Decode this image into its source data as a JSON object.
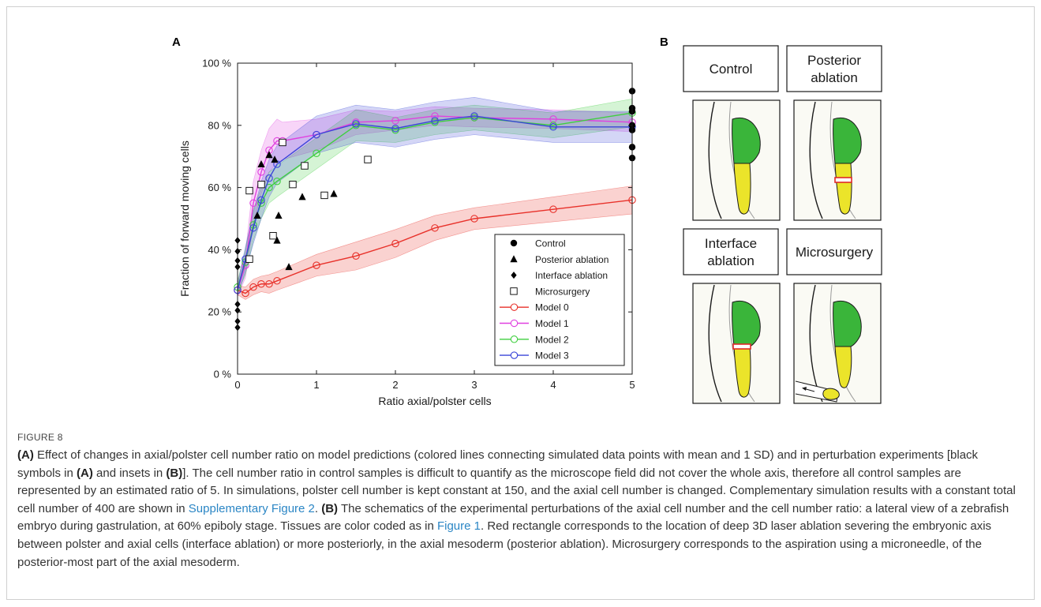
{
  "figure": {
    "panel_a_label": "A",
    "panel_b_label": "B",
    "caption_label": "FIGURE 8",
    "caption_a_ref": "(A)",
    "caption_1": " Effect of changes in axial/polster cell number ratio on model predictions (colored lines connecting simulated data points with mean and 1 SD) and in perturbation experiments [black symbols in ",
    "caption_2": " and insets in ",
    "caption_3": "]. The cell number ratio in control samples is difficult to quantify as the microscope field did not cover the whole axis, therefore all control samples are represented by an estimated ratio of 5. In simulations, polster cell number is kept constant at 150, and the axial cell number is changed. Complementary simulation results with a constant total cell number of 400 are shown in ",
    "caption_link_1": "Supplementary Figure 2",
    "caption_4": ". ",
    "caption_b_ref": "(B)",
    "caption_5": " The schematics of the experimental perturbations of the axial cell number and the cell number ratio: a lateral view of a zebrafish embryo during gastrulation, at 60% epiboly stage. Tissues are color coded as in ",
    "caption_link_2": "Figure 1",
    "caption_6": ". Red rectangle corresponds to the location of deep 3D laser ablation severing the embryonic axis between polster and axial cells (interface ablation) or more posteriorly, in the axial mesoderm (posterior ablation). Microsurgery corresponds to the aspiration using a microneedle, of the posterior-most part of the axial mesoderm.",
    "inset_titles": {
      "control": [
        "Control"
      ],
      "posterior": [
        "Posterior",
        "ablation"
      ],
      "interface": [
        "Interface",
        "ablation"
      ],
      "microsurgery": [
        "Microsurgery"
      ]
    }
  },
  "chart_data": {
    "type": "line",
    "xlabel": "Ratio axial/polster cells",
    "ylabel": "Fraction of forward moving cells",
    "xlim": [
      0,
      5
    ],
    "ylim": [
      0,
      100
    ],
    "xticks": [
      "0",
      "1",
      "2",
      "3",
      "4",
      "5"
    ],
    "yticks": [
      "0 %",
      "20 %",
      "40 %",
      "60 %",
      "80 %",
      "100 %"
    ],
    "grid": false,
    "legend_position": "bottom-right",
    "series": [
      {
        "name": "Model 0",
        "color": "#e8312a",
        "x": [
          0,
          0.1,
          0.2,
          0.3,
          0.4,
          0.5,
          1,
          1.5,
          2,
          2.5,
          3,
          4,
          5
        ],
        "y": [
          27,
          26,
          28,
          29,
          29,
          30,
          35,
          38,
          42,
          47,
          50,
          53,
          56
        ],
        "sd": [
          1.5,
          2,
          2.5,
          2.5,
          3,
          3,
          3.5,
          4.5,
          4.5,
          4,
          3.5,
          4,
          4.5
        ]
      },
      {
        "name": "Model 1",
        "color": "#e040e0",
        "x": [
          0,
          0.1,
          0.2,
          0.3,
          0.4,
          0.5,
          0.57,
          1,
          1.5,
          2,
          2.5,
          3,
          4,
          5
        ],
        "y": [
          27,
          35,
          55,
          65,
          72,
          75,
          75,
          77,
          81,
          81.5,
          83,
          82.5,
          82,
          81
        ],
        "sd": [
          2,
          4,
          7,
          7,
          7,
          7,
          6,
          5,
          4,
          3,
          3,
          3,
          3,
          3
        ]
      },
      {
        "name": "Model 2",
        "color": "#3fcf3f",
        "x": [
          0,
          0.1,
          0.2,
          0.3,
          0.4,
          0.5,
          1,
          1.5,
          2,
          2.5,
          3,
          4,
          5
        ],
        "y": [
          28,
          36,
          48,
          55,
          60,
          62,
          71,
          80,
          78.5,
          81,
          82.5,
          80,
          84
        ],
        "sd": [
          2,
          4,
          5,
          5,
          5,
          5,
          5,
          5,
          4,
          4,
          4,
          4,
          4.5
        ]
      },
      {
        "name": "Model 3",
        "color": "#3a46d8",
        "x": [
          0,
          0.1,
          0.2,
          0.3,
          0.4,
          0.5,
          1,
          1.5,
          2,
          2.5,
          3,
          4,
          5
        ],
        "y": [
          27,
          37,
          47,
          56,
          63,
          67.5,
          77,
          80.5,
          79,
          81.5,
          83,
          79.5,
          79.5
        ],
        "sd": [
          2,
          4,
          5,
          6,
          6,
          6,
          6,
          6,
          6,
          6,
          6,
          5,
          5
        ]
      }
    ],
    "experiments": [
      {
        "name": "Control",
        "marker": "circle",
        "points": [
          [
            5,
            91
          ],
          [
            5,
            85.5
          ],
          [
            5,
            84.5
          ],
          [
            5,
            80
          ],
          [
            5,
            78.5
          ],
          [
            5,
            73
          ],
          [
            5,
            69.5
          ]
        ]
      },
      {
        "name": "Posterior ablation",
        "marker": "triangle",
        "points": [
          [
            0.3,
            67.5
          ],
          [
            0.4,
            70.5
          ],
          [
            0.47,
            69
          ],
          [
            0.25,
            51
          ],
          [
            0.52,
            51
          ],
          [
            0.5,
            43
          ],
          [
            0.65,
            34.5
          ],
          [
            0.82,
            57
          ],
          [
            1.22,
            58
          ]
        ]
      },
      {
        "name": "Interface ablation",
        "marker": "diamond",
        "points": [
          [
            0,
            43
          ],
          [
            0,
            39.5
          ],
          [
            0,
            36.5
          ],
          [
            0,
            34.5
          ],
          [
            0,
            22.5
          ],
          [
            0,
            20.5
          ],
          [
            0,
            17
          ],
          [
            0,
            15
          ]
        ]
      },
      {
        "name": "Microsurgery",
        "marker": "square",
        "points": [
          [
            0.15,
            59
          ],
          [
            0.3,
            61
          ],
          [
            0.57,
            74.5
          ],
          [
            0.85,
            67
          ],
          [
            0.7,
            61
          ],
          [
            1.1,
            57.5
          ],
          [
            1.65,
            69
          ],
          [
            0.45,
            44.5
          ],
          [
            0.15,
            37
          ]
        ]
      }
    ],
    "legend_order": [
      "Control",
      "Posterior ablation",
      "Interface ablation",
      "Microsurgery",
      "Model 0",
      "Model 1",
      "Model 2",
      "Model 3"
    ]
  }
}
